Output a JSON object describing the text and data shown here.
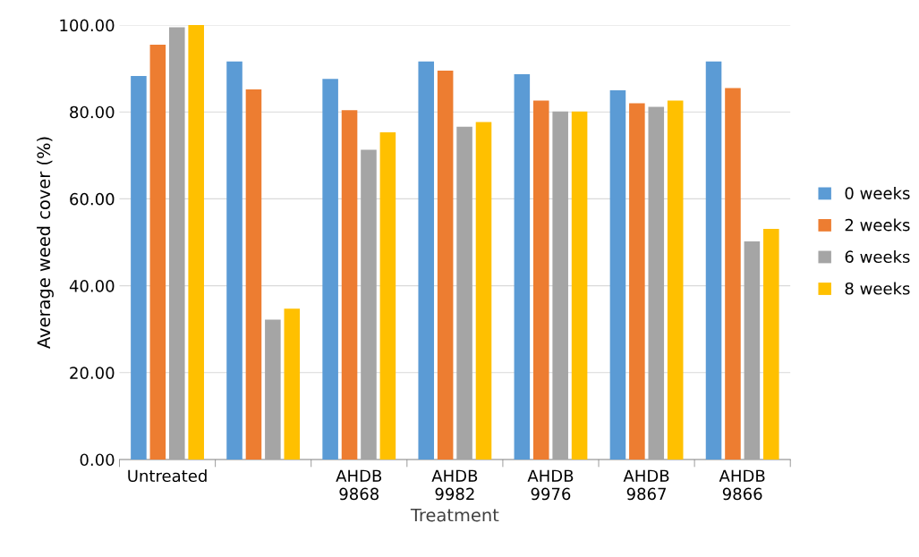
{
  "chart_data": {
    "type": "bar",
    "xlabel": "Treatment",
    "ylabel": "Average weed cover (%)",
    "categories": [
      "Untreated",
      null,
      "AHDB\n9868",
      "AHDB\n9982",
      "AHDB\n9976",
      "AHDB\n9867",
      "AHDB\n9866"
    ],
    "series": [
      {
        "name": "0 weeks",
        "color": "#5b9bd5",
        "values": [
          88.3,
          91.6,
          87.6,
          91.6,
          88.7,
          85.0,
          91.6
        ]
      },
      {
        "name": "2 weeks",
        "color": "#ed7d31",
        "values": [
          95.5,
          85.2,
          80.4,
          89.5,
          82.6,
          82.0,
          85.5
        ]
      },
      {
        "name": "6 weeks",
        "color": "#a5a5a5",
        "values": [
          99.5,
          32.2,
          71.3,
          76.6,
          80.1,
          81.2,
          50.2
        ]
      },
      {
        "name": "8 weeks",
        "color": "#ffc000",
        "values": [
          100.0,
          34.7,
          75.3,
          77.7,
          80.1,
          82.6,
          53.1
        ]
      }
    ],
    "ylim": [
      0,
      100
    ],
    "yticks": [
      {
        "value": 0,
        "label": "0.00"
      },
      {
        "value": 20,
        "label": "20.00"
      },
      {
        "value": 40,
        "label": "40.00"
      },
      {
        "value": 60,
        "label": "60.00"
      },
      {
        "value": 80,
        "label": "80.00"
      },
      {
        "value": 100,
        "label": "100.00"
      }
    ],
    "grid": "y",
    "legend": "right"
  }
}
